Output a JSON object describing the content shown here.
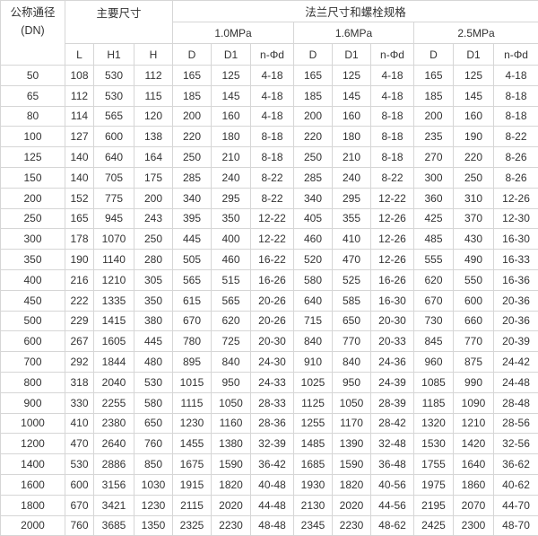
{
  "header": {
    "dn_label": "公称通径",
    "dn_unit": "(DN)",
    "main_dims": "主要尺寸",
    "flange": "法兰尺寸和螺栓规格",
    "pressures": [
      "1.0MPa",
      "1.6MPa",
      "2.5MPa"
    ],
    "main_cols": [
      "L",
      "H1",
      "H"
    ],
    "flange_cols": [
      "D",
      "D1",
      "n-Φd"
    ]
  },
  "rows": [
    [
      "50",
      "108",
      "530",
      "112",
      "165",
      "125",
      "4-18",
      "165",
      "125",
      "4-18",
      "165",
      "125",
      "4-18"
    ],
    [
      "65",
      "112",
      "530",
      "115",
      "185",
      "145",
      "4-18",
      "185",
      "145",
      "4-18",
      "185",
      "145",
      "8-18"
    ],
    [
      "80",
      "114",
      "565",
      "120",
      "200",
      "160",
      "4-18",
      "200",
      "160",
      "8-18",
      "200",
      "160",
      "8-18"
    ],
    [
      "100",
      "127",
      "600",
      "138",
      "220",
      "180",
      "8-18",
      "220",
      "180",
      "8-18",
      "235",
      "190",
      "8-22"
    ],
    [
      "125",
      "140",
      "640",
      "164",
      "250",
      "210",
      "8-18",
      "250",
      "210",
      "8-18",
      "270",
      "220",
      "8-26"
    ],
    [
      "150",
      "140",
      "705",
      "175",
      "285",
      "240",
      "8-22",
      "285",
      "240",
      "8-22",
      "300",
      "250",
      "8-26"
    ],
    [
      "200",
      "152",
      "775",
      "200",
      "340",
      "295",
      "8-22",
      "340",
      "295",
      "12-22",
      "360",
      "310",
      "12-26"
    ],
    [
      "250",
      "165",
      "945",
      "243",
      "395",
      "350",
      "12-22",
      "405",
      "355",
      "12-26",
      "425",
      "370",
      "12-30"
    ],
    [
      "300",
      "178",
      "1070",
      "250",
      "445",
      "400",
      "12-22",
      "460",
      "410",
      "12-26",
      "485",
      "430",
      "16-30"
    ],
    [
      "350",
      "190",
      "1140",
      "280",
      "505",
      "460",
      "16-22",
      "520",
      "470",
      "12-26",
      "555",
      "490",
      "16-33"
    ],
    [
      "400",
      "216",
      "1210",
      "305",
      "565",
      "515",
      "16-26",
      "580",
      "525",
      "16-26",
      "620",
      "550",
      "16-36"
    ],
    [
      "450",
      "222",
      "1335",
      "350",
      "615",
      "565",
      "20-26",
      "640",
      "585",
      "16-30",
      "670",
      "600",
      "20-36"
    ],
    [
      "500",
      "229",
      "1415",
      "380",
      "670",
      "620",
      "20-26",
      "715",
      "650",
      "20-30",
      "730",
      "660",
      "20-36"
    ],
    [
      "600",
      "267",
      "1605",
      "445",
      "780",
      "725",
      "20-30",
      "840",
      "770",
      "20-33",
      "845",
      "770",
      "20-39"
    ],
    [
      "700",
      "292",
      "1844",
      "480",
      "895",
      "840",
      "24-30",
      "910",
      "840",
      "24-36",
      "960",
      "875",
      "24-42"
    ],
    [
      "800",
      "318",
      "2040",
      "530",
      "1015",
      "950",
      "24-33",
      "1025",
      "950",
      "24-39",
      "1085",
      "990",
      "24-48"
    ],
    [
      "900",
      "330",
      "2255",
      "580",
      "1115",
      "1050",
      "28-33",
      "1125",
      "1050",
      "28-39",
      "1185",
      "1090",
      "28-48"
    ],
    [
      "1000",
      "410",
      "2380",
      "650",
      "1230",
      "1160",
      "28-36",
      "1255",
      "1170",
      "28-42",
      "1320",
      "1210",
      "28-56"
    ],
    [
      "1200",
      "470",
      "2640",
      "760",
      "1455",
      "1380",
      "32-39",
      "1485",
      "1390",
      "32-48",
      "1530",
      "1420",
      "32-56"
    ],
    [
      "1400",
      "530",
      "2886",
      "850",
      "1675",
      "1590",
      "36-42",
      "1685",
      "1590",
      "36-48",
      "1755",
      "1640",
      "36-62"
    ],
    [
      "1600",
      "600",
      "3156",
      "1030",
      "1915",
      "1820",
      "40-48",
      "1930",
      "1820",
      "40-56",
      "1975",
      "1860",
      "40-62"
    ],
    [
      "1800",
      "670",
      "3421",
      "1230",
      "2115",
      "2020",
      "44-48",
      "2130",
      "2020",
      "44-56",
      "2195",
      "2070",
      "44-70"
    ],
    [
      "2000",
      "760",
      "3685",
      "1350",
      "2325",
      "2230",
      "48-48",
      "2345",
      "2230",
      "48-62",
      "2425",
      "2300",
      "48-70"
    ]
  ]
}
